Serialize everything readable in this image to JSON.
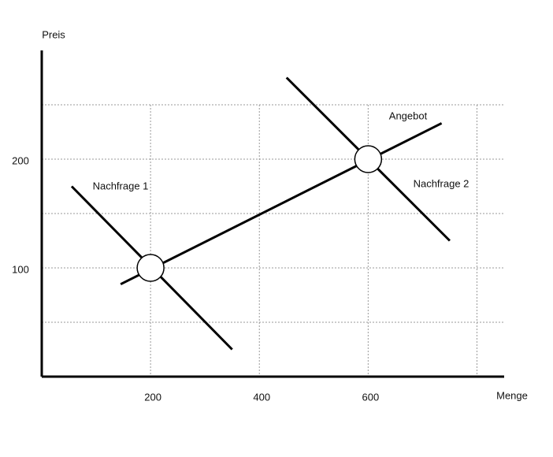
{
  "chart_data": {
    "type": "line",
    "y_label": "Preis",
    "x_label": "Menge",
    "xlim": [
      0,
      850
    ],
    "ylim": [
      0,
      300
    ],
    "xticks": [
      200,
      400,
      600
    ],
    "yticks": [
      100,
      200
    ],
    "xgrid": [
      200,
      400,
      600,
      800
    ],
    "ygrid": [
      50,
      100,
      150,
      200,
      250
    ],
    "grid": true,
    "series": [
      {
        "name": "Nachfrage 1",
        "color": "#000000",
        "x": [
          55,
          350
        ],
        "values": [
          175,
          25
        ]
      },
      {
        "name": "Angebot",
        "color": "#000000",
        "x": [
          145,
          735
        ],
        "values": [
          85,
          233
        ]
      },
      {
        "name": "Nachfrage 2",
        "color": "#000000",
        "x": [
          450,
          750
        ],
        "values": [
          275,
          125
        ]
      }
    ],
    "equilibria": {
      "x": [
        200,
        600
      ],
      "values": [
        100,
        200
      ]
    }
  }
}
